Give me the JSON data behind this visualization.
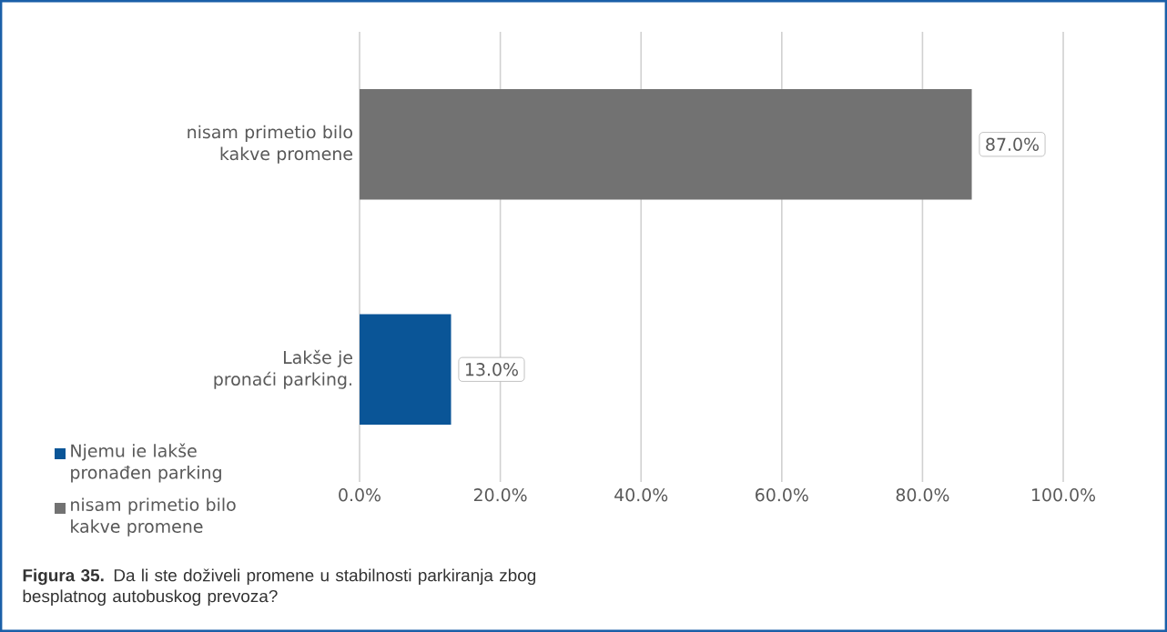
{
  "chart_data": {
    "type": "bar",
    "orientation": "horizontal",
    "title": "**Figura 35.** Da li ste doživeli promene u stabilnosti parkiranja zbog besplatnog autobuskog prevoza?",
    "categories": [
      "nisam primetio bilo kakve promene",
      "Lakše je pronaći parking."
    ],
    "series": [
      {
        "name": "Njemu ie lakše pronađen parking",
        "color": "#0a5597",
        "values": [
          null,
          13.0
        ],
        "value_labels": [
          null,
          "13.0%"
        ]
      },
      {
        "name": "nisam primetio bilo kakve promene",
        "color": "#727272",
        "values": [
          87.0,
          null
        ],
        "value_labels": [
          "87.0%",
          null
        ]
      }
    ],
    "xlim": [
      0,
      100
    ],
    "xticks": [
      {
        "value": 0,
        "label": "0.0%"
      },
      {
        "value": 20,
        "label": "20.0%"
      },
      {
        "value": 40,
        "label": "40.0%"
      },
      {
        "value": 60,
        "label": "60.0%"
      },
      {
        "value": 80,
        "label": "80.0%"
      },
      {
        "value": 100,
        "label": "100.0%"
      }
    ],
    "grid": "x",
    "legend": "bottom left"
  }
}
